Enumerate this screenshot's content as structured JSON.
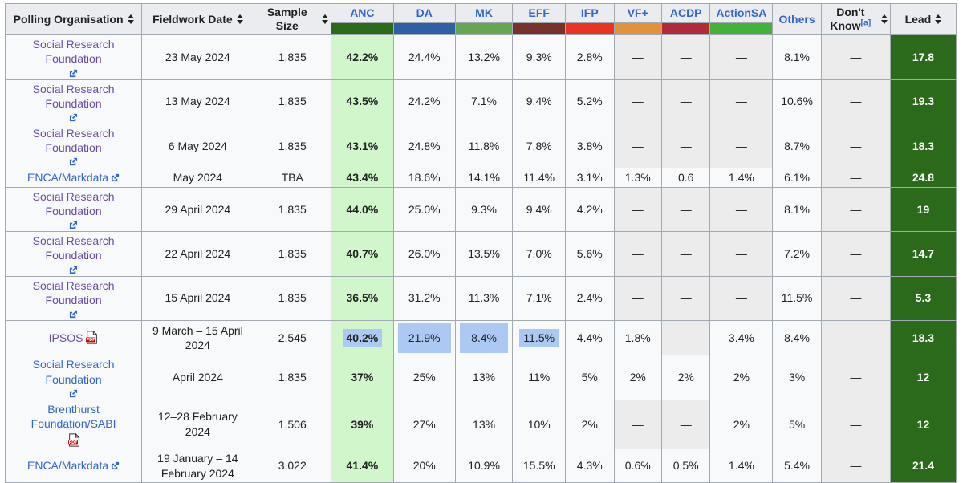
{
  "chart_data": {
    "type": "table",
    "columns": [
      "Polling Organisation",
      "Fieldwork Date",
      "Sample Size",
      "ANC",
      "DA",
      "MK",
      "EFF",
      "IFP",
      "VF+",
      "ACDP",
      "ActionSA",
      "Others",
      "Don't Know",
      "Lead"
    ],
    "rows": [
      [
        "Social Research Foundation",
        "23 May 2024",
        "1,835",
        "42.2%",
        "24.4%",
        "13.2%",
        "9.3%",
        "2.8%",
        "—",
        "—",
        "—",
        "8.1%",
        "—",
        "17.8"
      ],
      [
        "Social Research Foundation",
        "13 May 2024",
        "1,835",
        "43.5%",
        "24.2%",
        "7.1%",
        "9.4%",
        "5.2%",
        "—",
        "—",
        "—",
        "10.6%",
        "—",
        "19.3"
      ],
      [
        "Social Research Foundation",
        "6 May 2024",
        "1,835",
        "43.1%",
        "24.8%",
        "11.8%",
        "7.8%",
        "3.8%",
        "—",
        "—",
        "—",
        "8.7%",
        "—",
        "18.3"
      ],
      [
        "ENCA/Markdata",
        "May 2024",
        "TBA",
        "43.4%",
        "18.6%",
        "14.1%",
        "11.4%",
        "3.1%",
        "1.3%",
        "0.6",
        "1.4%",
        "6.1%",
        "—",
        "24.8"
      ],
      [
        "Social Research Foundation",
        "29 April 2024",
        "1,835",
        "44.0%",
        "25.0%",
        "9.3%",
        "9.4%",
        "4.2%",
        "—",
        "—",
        "—",
        "8.1%",
        "—",
        "19"
      ],
      [
        "Social Research Foundation",
        "22 April 2024",
        "1,835",
        "40.7%",
        "26.0%",
        "13.5%",
        "7.0%",
        "5.6%",
        "—",
        "—",
        "—",
        "7.2%",
        "—",
        "14.7"
      ],
      [
        "Social Research Foundation",
        "15 April 2024",
        "1,835",
        "36.5%",
        "31.2%",
        "11.3%",
        "7.1%",
        "2.4%",
        "—",
        "—",
        "—",
        "11.5%",
        "—",
        "5.3"
      ],
      [
        "IPSOS",
        "9 March – 15 April 2024",
        "2,545",
        "40.2%",
        "21.9%",
        "8.4%",
        "11.5%",
        "4.4%",
        "1.8%",
        "—",
        "3.4%",
        "8.4%",
        "—",
        "18.3"
      ],
      [
        "Social Research Foundation",
        "April 2024",
        "1,835",
        "37%",
        "25%",
        "13%",
        "11%",
        "5%",
        "2%",
        "2%",
        "2%",
        "3%",
        "—",
        "12"
      ],
      [
        "Brenthurst Foundation/SABI",
        "12–28 February 2024",
        "1,506",
        "39%",
        "27%",
        "13%",
        "10%",
        "2%",
        "—",
        "—",
        "2%",
        "5%",
        "—",
        "12"
      ],
      [
        "ENCA/Markdata",
        "19 January – 14 February 2024",
        "3,022",
        "41.4%",
        "20%",
        "10.9%",
        "15.5%",
        "4.3%",
        "0.6%",
        "0.5%",
        "1.4%",
        "5.4%",
        "—",
        "21.4"
      ]
    ]
  },
  "header": {
    "polling_org": "Polling Organisation",
    "fieldwork_date": "Fieldwork Date",
    "sample_size": "Sample Size",
    "others": "Others",
    "dont_know": "Don't Know",
    "dont_know_note": "[a]",
    "lead": "Lead",
    "parties": [
      {
        "name": "ANC",
        "color": "#2b6a1b"
      },
      {
        "name": "DA",
        "color": "#2f5fa5"
      },
      {
        "name": "MK",
        "color": "#66a551"
      },
      {
        "name": "EFF",
        "color": "#76312a"
      },
      {
        "name": "IFP",
        "color": "#e93425"
      },
      {
        "name": "VF+",
        "color": "#e0923c"
      },
      {
        "name": "ACDP",
        "color": "#b02a3a"
      },
      {
        "name": "ActionSA",
        "color": "#45b13a"
      }
    ]
  },
  "row_meta": [
    {
      "link_state": "visited",
      "icon": "external"
    },
    {
      "link_state": "visited",
      "icon": "external"
    },
    {
      "link_state": "visited",
      "icon": "external"
    },
    {
      "link_state": "new",
      "icon": "external"
    },
    {
      "link_state": "visited",
      "icon": "external"
    },
    {
      "link_state": "visited",
      "icon": "external"
    },
    {
      "link_state": "visited",
      "icon": "external"
    },
    {
      "link_state": "visited",
      "icon": "pdf",
      "highlight_text": [
        0,
        3
      ],
      "highlight_full": [
        1,
        2
      ]
    },
    {
      "link_state": "new",
      "icon": "external"
    },
    {
      "link_state": "new",
      "icon": "pdf"
    },
    {
      "link_state": "new",
      "icon": "external"
    }
  ],
  "colors": {
    "header_bg": "#eaecf0",
    "cell_bg": "#f8f9fa",
    "na_cell_bg": "#ececec",
    "anc_cell_bg": "#d2f6cb",
    "lead_cell_bg": "#2b6a1b",
    "border": "#a2a9b1",
    "link_new": "#3366cc",
    "link_visited": "#6b4ba1",
    "selection_highlight": "#abc9f2",
    "text": "#202122"
  }
}
